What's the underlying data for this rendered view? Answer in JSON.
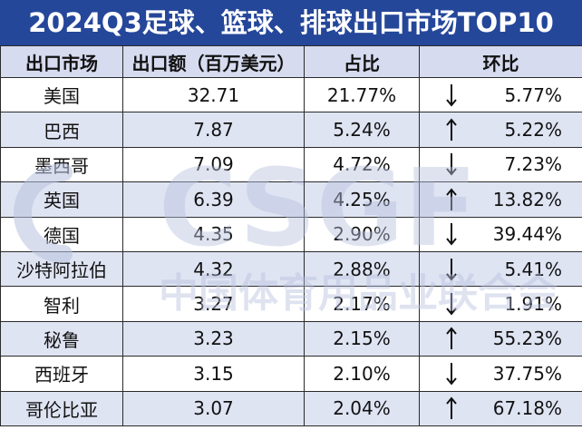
{
  "title": "2024Q3足球、篮球、排球出口市场TOP10",
  "headers": [
    "出口市场",
    "出口额（百万美元）",
    "占比",
    "环比"
  ],
  "rows": [
    {
      "market": "美国",
      "value": "32.71",
      "share": "21.77%",
      "direction": "down",
      "change": "5.77%"
    },
    {
      "market": "巴西",
      "value": "7.87",
      "share": "5.24%",
      "direction": "up",
      "change": "5.22%"
    },
    {
      "market": "墨西哥",
      "value": "7.09",
      "share": "4.72%",
      "direction": "down",
      "change": "7.23%"
    },
    {
      "market": "英国",
      "value": "6.39",
      "share": "4.25%",
      "direction": "up",
      "change": "13.82%"
    },
    {
      "market": "德国",
      "value": "4.35",
      "share": "2.90%",
      "direction": "down",
      "change": "39.44%"
    },
    {
      "market": "沙特阿拉伯",
      "value": "4.32",
      "share": "2.88%",
      "direction": "down",
      "change": "5.41%"
    },
    {
      "market": "智利",
      "value": "3.27",
      "share": "2.17%",
      "direction": "down",
      "change": "1.91%"
    },
    {
      "market": "秘鲁",
      "value": "3.23",
      "share": "2.15%",
      "direction": "up",
      "change": "55.23%"
    },
    {
      "market": "西班牙",
      "value": "3.15",
      "share": "2.10%",
      "direction": "down",
      "change": "37.75%"
    },
    {
      "market": "哥伦比亚",
      "value": "3.07",
      "share": "2.04%",
      "direction": "up",
      "change": "67.18%"
    }
  ],
  "watermark": {
    "logo": "CSGF",
    "org": "中国体育用品业联合会"
  },
  "colors": {
    "title_bg": "#25479a",
    "header_bg": "#d6dbef",
    "stripe_bg": "#dfe4f3",
    "watermark": "#b7c1dd"
  }
}
